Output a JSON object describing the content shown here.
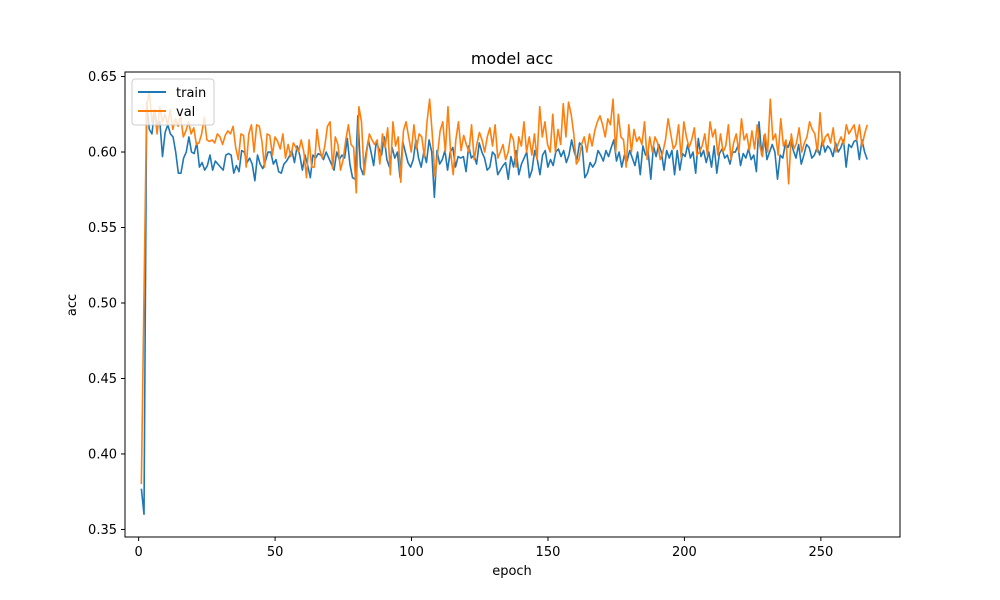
{
  "chart_data": {
    "type": "line",
    "title": "model acc",
    "xlabel": "epoch",
    "ylabel": "acc",
    "xlim": [
      -5,
      279
    ],
    "ylim": [
      0.345,
      0.653
    ],
    "x_ticks": [
      0,
      50,
      100,
      150,
      200,
      250
    ],
    "y_ticks": [
      0.35,
      0.4,
      0.45,
      0.5,
      0.55,
      0.6,
      0.65
    ],
    "x_tick_labels": [
      "0",
      "50",
      "100",
      "150",
      "200",
      "250"
    ],
    "y_tick_labels": [
      "0.35",
      "0.40",
      "0.45",
      "0.50",
      "0.55",
      "0.60",
      "0.65"
    ],
    "grid": false,
    "legend_position": "upper-left",
    "x_start": 1,
    "x_end": 267,
    "series": [
      {
        "name": "train",
        "color": "#1f77b4",
        "values": [
          0.377,
          0.36,
          0.633,
          0.615,
          0.612,
          0.628,
          0.617,
          0.62,
          0.597,
          0.613,
          0.618,
          0.612,
          0.61,
          0.6,
          0.586,
          0.586,
          0.596,
          0.6,
          0.61,
          0.6,
          0.599,
          0.606,
          0.59,
          0.593,
          0.588,
          0.591,
          0.598,
          0.588,
          0.594,
          0.592,
          0.59,
          0.588,
          0.598,
          0.599,
          0.598,
          0.586,
          0.591,
          0.587,
          0.601,
          0.6,
          0.593,
          0.596,
          0.592,
          0.581,
          0.598,
          0.592,
          0.589,
          0.594,
          0.6,
          0.6,
          0.592,
          0.595,
          0.587,
          0.586,
          0.592,
          0.594,
          0.597,
          0.601,
          0.593,
          0.604,
          0.598,
          0.588,
          0.598,
          0.591,
          0.583,
          0.598,
          0.596,
          0.599,
          0.598,
          0.595,
          0.6,
          0.596,
          0.592,
          0.588,
          0.6,
          0.595,
          0.598,
          0.596,
          0.609,
          0.592,
          0.583,
          0.582,
          0.624,
          0.59,
          0.585,
          0.598,
          0.608,
          0.6,
          0.591,
          0.607,
          0.602,
          0.598,
          0.61,
          0.595,
          0.59,
          0.603,
          0.596,
          0.6,
          0.583,
          0.607,
          0.6,
          0.593,
          0.59,
          0.595,
          0.608,
          0.596,
          0.59,
          0.6,
          0.593,
          0.608,
          0.6,
          0.57,
          0.601,
          0.592,
          0.595,
          0.601,
          0.588,
          0.6,
          0.603,
          0.59,
          0.597,
          0.596,
          0.597,
          0.587,
          0.604,
          0.596,
          0.598,
          0.592,
          0.606,
          0.6,
          0.596,
          0.588,
          0.59,
          0.6,
          0.598,
          0.585,
          0.588,
          0.591,
          0.593,
          0.582,
          0.597,
          0.59,
          0.601,
          0.585,
          0.592,
          0.596,
          0.6,
          0.583,
          0.588,
          0.601,
          0.595,
          0.585,
          0.598,
          0.601,
          0.59,
          0.595,
          0.591,
          0.6,
          0.602,
          0.597,
          0.601,
          0.593,
          0.598,
          0.608,
          0.6,
          0.595,
          0.606,
          0.604,
          0.583,
          0.586,
          0.593,
          0.59,
          0.593,
          0.601,
          0.598,
          0.594,
          0.601,
          0.597,
          0.603,
          0.608,
          0.594,
          0.6,
          0.59,
          0.598,
          0.594,
          0.601,
          0.596,
          0.591,
          0.6,
          0.585,
          0.604,
          0.598,
          0.6,
          0.582,
          0.604,
          0.597,
          0.605,
          0.6,
          0.588,
          0.601,
          0.596,
          0.601,
          0.585,
          0.601,
          0.588,
          0.599,
          0.597,
          0.605,
          0.596,
          0.6,
          0.586,
          0.609,
          0.597,
          0.601,
          0.593,
          0.6,
          0.59,
          0.604,
          0.586,
          0.599,
          0.602,
          0.596,
          0.598,
          0.592,
          0.6,
          0.6,
          0.604,
          0.591,
          0.599,
          0.596,
          0.602,
          0.595,
          0.598,
          0.587,
          0.62,
          0.598,
          0.611,
          0.595,
          0.6,
          0.605,
          0.6,
          0.582,
          0.598,
          0.596,
          0.606,
          0.603,
          0.608,
          0.601,
          0.596,
          0.605,
          0.592,
          0.598,
          0.605,
          0.603,
          0.596,
          0.598,
          0.603,
          0.598,
          0.608,
          0.6,
          0.604,
          0.602,
          0.597,
          0.606,
          0.6,
          0.603,
          0.608,
          0.59,
          0.605,
          0.603,
          0.607,
          0.608,
          0.595,
          0.608,
          0.6,
          0.595
        ]
      },
      {
        "name": "val",
        "color": "#ff7f0e",
        "values": [
          0.38,
          0.505,
          0.63,
          0.64,
          0.62,
          0.628,
          0.612,
          0.63,
          0.62,
          0.625,
          0.618,
          0.628,
          0.615,
          0.622,
          0.617,
          0.624,
          0.61,
          0.614,
          0.62,
          0.612,
          0.616,
          0.605,
          0.606,
          0.612,
          0.623,
          0.608,
          0.607,
          0.608,
          0.606,
          0.612,
          0.61,
          0.605,
          0.611,
          0.614,
          0.612,
          0.617,
          0.603,
          0.595,
          0.612,
          0.611,
          0.59,
          0.612,
          0.618,
          0.6,
          0.618,
          0.617,
          0.607,
          0.59,
          0.612,
          0.611,
          0.598,
          0.61,
          0.607,
          0.602,
          0.612,
          0.596,
          0.605,
          0.597,
          0.606,
          0.603,
          0.6,
          0.608,
          0.6,
          0.583,
          0.608,
          0.59,
          0.59,
          0.615,
          0.602,
          0.596,
          0.604,
          0.617,
          0.62,
          0.589,
          0.61,
          0.605,
          0.588,
          0.595,
          0.608,
          0.618,
          0.605,
          0.603,
          0.573,
          0.63,
          0.62,
          0.585,
          0.6,
          0.612,
          0.608,
          0.605,
          0.608,
          0.592,
          0.612,
          0.603,
          0.616,
          0.585,
          0.62,
          0.604,
          0.61,
          0.58,
          0.614,
          0.62,
          0.61,
          0.6,
          0.618,
          0.602,
          0.612,
          0.61,
          0.597,
          0.62,
          0.635,
          0.612,
          0.584,
          0.598,
          0.614,
          0.62,
          0.6,
          0.63,
          0.6,
          0.585,
          0.608,
          0.62,
          0.601,
          0.611,
          0.605,
          0.6,
          0.618,
          0.595,
          0.605,
          0.613,
          0.608,
          0.6,
          0.61,
          0.616,
          0.604,
          0.618,
          0.596,
          0.6,
          0.605,
          0.595,
          0.6,
          0.612,
          0.608,
          0.59,
          0.61,
          0.604,
          0.62,
          0.6,
          0.61,
          0.598,
          0.612,
          0.595,
          0.63,
          0.61,
          0.62,
          0.605,
          0.6,
          0.625,
          0.6,
          0.615,
          0.605,
          0.632,
          0.61,
          0.633,
          0.625,
          0.612,
          0.592,
          0.595,
          0.605,
          0.61,
          0.6,
          0.612,
          0.604,
          0.614,
          0.62,
          0.624,
          0.618,
          0.61,
          0.622,
          0.618,
          0.635,
          0.6,
          0.625,
          0.61,
          0.608,
          0.59,
          0.618,
          0.6,
          0.615,
          0.607,
          0.61,
          0.605,
          0.62,
          0.595,
          0.61,
          0.6,
          0.61,
          0.606,
          0.595,
          0.6,
          0.608,
          0.622,
          0.612,
          0.602,
          0.605,
          0.618,
          0.596,
          0.62,
          0.61,
          0.603,
          0.608,
          0.616,
          0.598,
          0.6,
          0.604,
          0.612,
          0.598,
          0.62,
          0.61,
          0.615,
          0.598,
          0.612,
          0.6,
          0.604,
          0.618,
          0.595,
          0.606,
          0.612,
          0.6,
          0.622,
          0.608,
          0.612,
          0.601,
          0.614,
          0.602,
          0.618,
          0.604,
          0.597,
          0.612,
          0.6,
          0.635,
          0.608,
          0.612,
          0.598,
          0.622,
          0.604,
          0.608,
          0.579,
          0.612,
          0.602,
          0.606,
          0.616,
          0.6,
          0.606,
          0.61,
          0.62,
          0.615,
          0.612,
          0.6,
          0.626,
          0.604,
          0.61,
          0.612,
          0.606,
          0.616,
          0.6,
          0.606,
          0.61,
          0.605,
          0.618,
          0.612,
          0.615,
          0.618,
          0.608,
          0.618,
          0.604,
          0.612,
          0.618
        ]
      }
    ]
  }
}
